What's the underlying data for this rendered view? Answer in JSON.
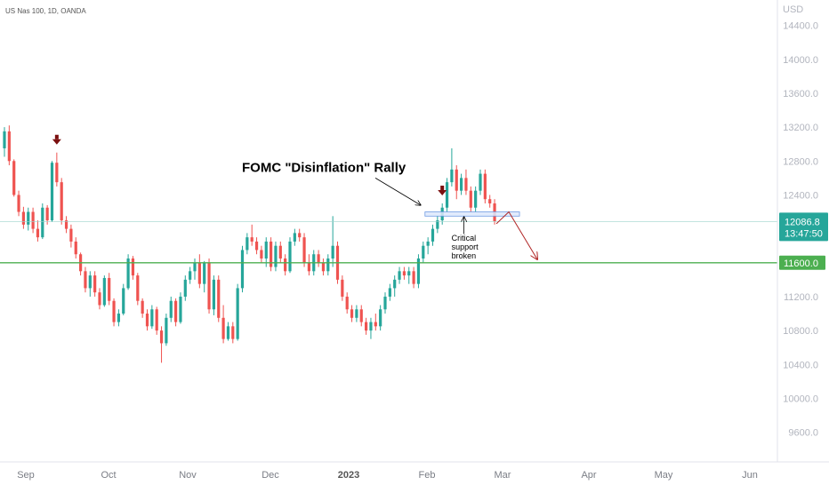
{
  "chart_data": {
    "type": "candlestick",
    "title": "US Nas 100, 1D, OANDA",
    "currency": "USD",
    "y_ticks": [
      9600,
      10000,
      10400,
      10800,
      11200,
      11600,
      12000,
      12400,
      12800,
      13200,
      13600,
      14000,
      14400
    ],
    "y_tick_labels": [
      "9600.0",
      "10000.0",
      "10400.0",
      "10800.0",
      "11200.0",
      "11600.0",
      "12000.0",
      "12400.0",
      "12800.0",
      "13200.0",
      "13600.0",
      "14000.0",
      "14400.0"
    ],
    "ylim": [
      9250,
      14700
    ],
    "month_labels": [
      {
        "label": "Sep",
        "bold": false
      },
      {
        "label": "Oct",
        "bold": false
      },
      {
        "label": "Nov",
        "bold": false
      },
      {
        "label": "Dec",
        "bold": false
      },
      {
        "label": "2023",
        "bold": true
      },
      {
        "label": "Feb",
        "bold": false
      },
      {
        "label": "Mar",
        "bold": false
      },
      {
        "label": "Apr",
        "bold": false
      },
      {
        "label": "May",
        "bold": false
      },
      {
        "label": "Jun",
        "bold": false
      }
    ],
    "candles": [
      [
        12950,
        13200,
        12850,
        13150
      ],
      [
        13150,
        13220,
        12750,
        12800
      ],
      [
        12800,
        12820,
        12380,
        12400
      ],
      [
        12400,
        12450,
        12150,
        12200
      ],
      [
        12200,
        12260,
        12000,
        12050
      ],
      [
        12050,
        12250,
        11980,
        12200
      ],
      [
        12200,
        12250,
        11950,
        12000
      ],
      [
        12000,
        12100,
        11850,
        11900
      ],
      [
        11900,
        12300,
        11880,
        12250
      ],
      [
        12250,
        12280,
        12050,
        12100
      ],
      [
        12100,
        12800,
        12080,
        12780
      ],
      [
        12780,
        12900,
        12500,
        12550
      ],
      [
        12550,
        12600,
        12050,
        12100
      ],
      [
        12100,
        12150,
        11950,
        12000
      ],
      [
        12000,
        12050,
        11780,
        11850
      ],
      [
        11850,
        11900,
        11650,
        11700
      ],
      [
        11700,
        11720,
        11450,
        11500
      ],
      [
        11500,
        11550,
        11250,
        11300
      ],
      [
        11300,
        11500,
        11200,
        11450
      ],
      [
        11450,
        11500,
        11200,
        11250
      ],
      [
        11250,
        11300,
        11050,
        11100
      ],
      [
        11100,
        11450,
        11080,
        11420
      ],
      [
        11420,
        11480,
        11100,
        11150
      ],
      [
        11150,
        11180,
        10850,
        10900
      ],
      [
        10900,
        11050,
        10850,
        11000
      ],
      [
        11000,
        11350,
        10980,
        11300
      ],
      [
        11300,
        11700,
        11280,
        11650
      ],
      [
        11650,
        11680,
        11400,
        11450
      ],
      [
        11450,
        11480,
        11100,
        11150
      ],
      [
        11150,
        11180,
        10950,
        11000
      ],
      [
        11000,
        11050,
        10800,
        10850
      ],
      [
        10850,
        11100,
        10820,
        11050
      ],
      [
        11050,
        11080,
        10750,
        10800
      ],
      [
        10800,
        10850,
        10420,
        10650
      ],
      [
        10650,
        11000,
        10620,
        10950
      ],
      [
        10950,
        11200,
        10900,
        11150
      ],
      [
        11150,
        11180,
        10850,
        10900
      ],
      [
        10900,
        11250,
        10880,
        11200
      ],
      [
        11200,
        11450,
        11150,
        11400
      ],
      [
        11400,
        11550,
        11350,
        11500
      ],
      [
        11500,
        11650,
        11400,
        11600
      ],
      [
        11600,
        11700,
        11300,
        11350
      ],
      [
        11350,
        11620,
        11250,
        11600
      ],
      [
        11600,
        11650,
        11000,
        11050
      ],
      [
        11050,
        11450,
        10980,
        11400
      ],
      [
        11400,
        11450,
        10900,
        10950
      ],
      [
        10950,
        11100,
        10650,
        10700
      ],
      [
        10700,
        10900,
        10680,
        10850
      ],
      [
        10850,
        10900,
        10650,
        10700
      ],
      [
        10700,
        11350,
        10680,
        11300
      ],
      [
        11300,
        11800,
        11250,
        11750
      ],
      [
        11750,
        11950,
        11700,
        11900
      ],
      [
        11900,
        12050,
        11800,
        11850
      ],
      [
        11850,
        11900,
        11700,
        11750
      ],
      [
        11750,
        11800,
        11600,
        11650
      ],
      [
        11650,
        11900,
        11550,
        11850
      ],
      [
        11850,
        11900,
        11500,
        11550
      ],
      [
        11550,
        11850,
        11500,
        11800
      ],
      [
        11800,
        11850,
        11600,
        11650
      ],
      [
        11650,
        11700,
        11450,
        11500
      ],
      [
        11500,
        11900,
        11480,
        11850
      ],
      [
        11850,
        12000,
        11800,
        11950
      ],
      [
        11950,
        12000,
        11850,
        11900
      ],
      [
        11900,
        11950,
        11550,
        11600
      ],
      [
        11600,
        11700,
        11450,
        11500
      ],
      [
        11500,
        11750,
        11450,
        11700
      ],
      [
        11700,
        11750,
        11550,
        11600
      ],
      [
        11600,
        11650,
        11450,
        11500
      ],
      [
        11500,
        11700,
        11450,
        11650
      ],
      [
        11650,
        12150,
        11550,
        11800
      ],
      [
        11800,
        11850,
        11350,
        11400
      ],
      [
        11400,
        11450,
        11150,
        11200
      ],
      [
        11200,
        11250,
        11000,
        11050
      ],
      [
        11050,
        11100,
        10900,
        10950
      ],
      [
        10950,
        11100,
        10900,
        11050
      ],
      [
        11050,
        11100,
        10850,
        10900
      ],
      [
        10900,
        10950,
        10750,
        10800
      ],
      [
        10800,
        10950,
        10700,
        10900
      ],
      [
        10900,
        11000,
        10800,
        10850
      ],
      [
        10850,
        11100,
        10800,
        11050
      ],
      [
        11050,
        11250,
        11000,
        11200
      ],
      [
        11200,
        11350,
        11150,
        11300
      ],
      [
        11300,
        11450,
        11200,
        11400
      ],
      [
        11400,
        11550,
        11350,
        11500
      ],
      [
        11500,
        11550,
        11400,
        11450
      ],
      [
        11450,
        11550,
        11350,
        11500
      ],
      [
        11500,
        11550,
        11300,
        11350
      ],
      [
        11350,
        11700,
        11300,
        11650
      ],
      [
        11650,
        11850,
        11600,
        11800
      ],
      [
        11800,
        11900,
        11700,
        11850
      ],
      [
        11850,
        12050,
        11800,
        12000
      ],
      [
        12000,
        12150,
        11950,
        12100
      ],
      [
        12100,
        12300,
        12050,
        12250
      ],
      [
        12250,
        12600,
        12200,
        12550
      ],
      [
        12550,
        12950,
        12500,
        12700
      ],
      [
        12700,
        12750,
        12350,
        12450
      ],
      [
        12450,
        12650,
        12400,
        12600
      ],
      [
        12600,
        12700,
        12400,
        12450
      ],
      [
        12450,
        12500,
        12200,
        12250
      ],
      [
        12250,
        12500,
        12200,
        12450
      ],
      [
        12450,
        12700,
        12400,
        12650
      ],
      [
        12650,
        12700,
        12300,
        12350
      ],
      [
        12350,
        12400,
        12250,
        12300
      ],
      [
        12300,
        12350,
        12050,
        12086.8
      ]
    ],
    "current_price": 12086.8,
    "current_price_label": "12086.8",
    "countdown_label": "13:47:50",
    "support_level": 11600,
    "support_label": "11600.0",
    "support_zone": [
      12150,
      12200
    ],
    "colors": {
      "up": "#26a69a",
      "down": "#ef5350",
      "support_line": "#4caf50",
      "zone_fill": "#dde8fb",
      "zone_stroke": "#6f9be3",
      "peak_arrow": "#7b1010",
      "forecast_arrow": "#b02525",
      "price_tag": "#26a69a"
    },
    "annotations": {
      "rally_label": "FOMC \"Disinflation\" Rally",
      "support_note_line1": "Critical",
      "support_note_line2": "support",
      "support_note_line3": "broken"
    }
  }
}
